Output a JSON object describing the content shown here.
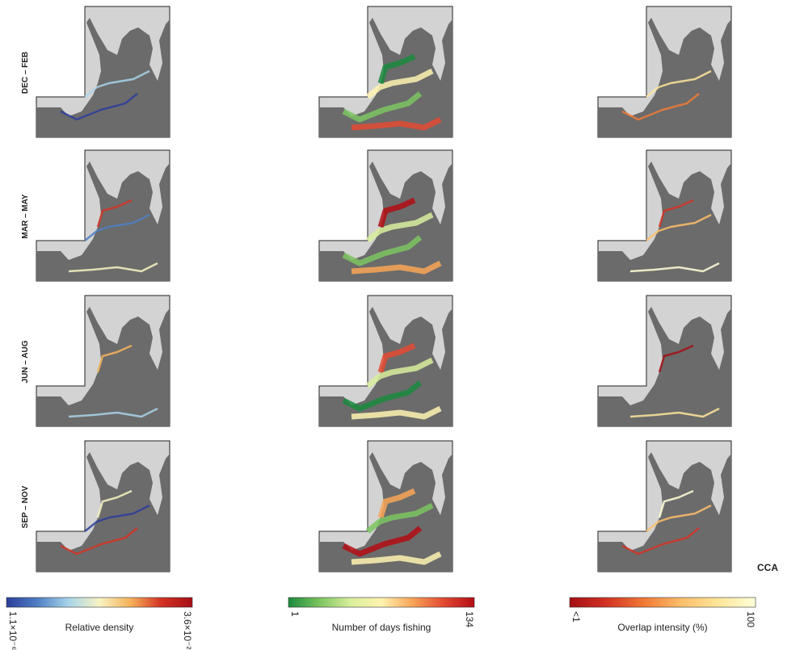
{
  "rows": [
    "DEC – FEB",
    "MAR – MAY",
    "JUN – AUG",
    "SEP – NOV"
  ],
  "legends": [
    {
      "title": "Relative density",
      "min_label": "1.1×10⁻⁶",
      "max_label": "3.6×10⁻²",
      "colors": [
        "#2c3e9a",
        "#4f7fc4",
        "#a9d4ea",
        "#f6f3c2",
        "#f6b25a",
        "#d33224",
        "#a50f15"
      ]
    },
    {
      "title": "Number of days fishing",
      "min_label": "1",
      "max_label": "134",
      "colors": [
        "#1a8a3d",
        "#7cc460",
        "#d8ee9c",
        "#fef3b0",
        "#f9a457",
        "#e34a33",
        "#b30d14"
      ]
    },
    {
      "title": "Overlap intensity (%)",
      "min_label": "<1",
      "max_label": "100",
      "colors": [
        "#a50f15",
        "#d33224",
        "#f07a35",
        "#fdbe6a",
        "#fee59a",
        "#ffffd8"
      ]
    }
  ],
  "region_label": "CCA"
}
